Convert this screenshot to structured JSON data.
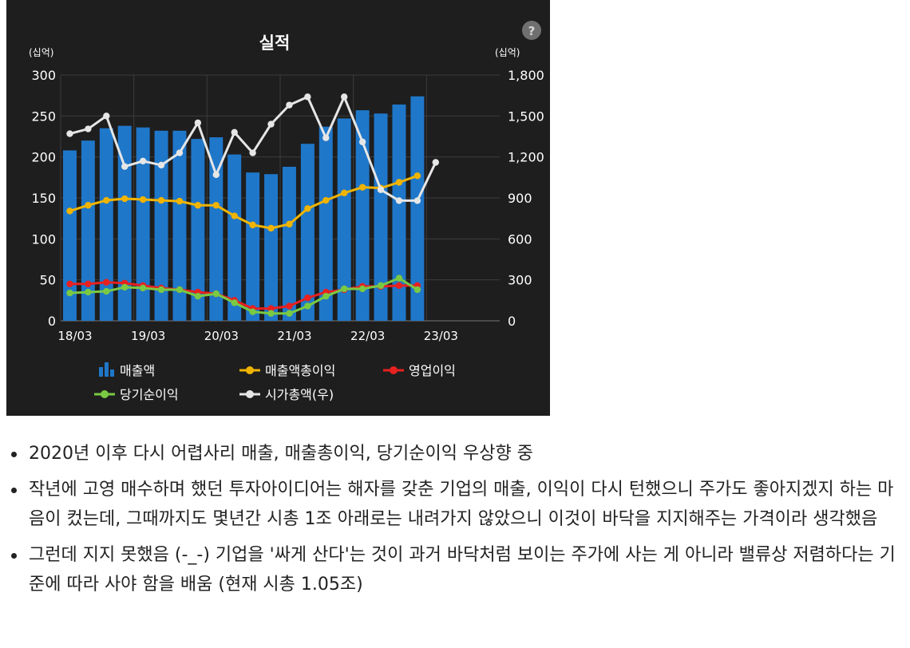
{
  "chart_data": {
    "type": "bar+line",
    "title": "실적",
    "help_icon": "?",
    "y_left": {
      "unit_label": "(십억)",
      "ylim": [
        0,
        300
      ],
      "ticks": [
        "300",
        "250",
        "200",
        "150",
        "100",
        "50",
        "0"
      ]
    },
    "y_right": {
      "unit_label": "(십억)",
      "ylim": [
        0,
        1800
      ],
      "ticks": [
        "1,800",
        "1,500",
        "1,200",
        "900",
        "600",
        "300",
        "0"
      ]
    },
    "x_ticks": [
      "18/03",
      "19/03",
      "20/03",
      "21/03",
      "22/03",
      "23/03"
    ],
    "categories": [
      "18/03",
      "18/06",
      "18/09",
      "18/12",
      "19/03",
      "19/06",
      "19/09",
      "19/12",
      "20/03",
      "20/06",
      "20/09",
      "20/12",
      "21/03",
      "21/06",
      "21/09",
      "21/12",
      "22/03",
      "22/06",
      "22/09",
      "22/12",
      "23/03"
    ],
    "series": [
      {
        "name": "매출액",
        "type": "bar",
        "axis": "left",
        "color": "#1f77c9",
        "values": [
          208,
          220,
          235,
          238,
          236,
          232,
          232,
          222,
          224,
          203,
          181,
          179,
          188,
          216,
          237,
          247,
          257,
          253,
          264,
          274,
          null
        ]
      },
      {
        "name": "매출액총이익",
        "type": "line",
        "axis": "left",
        "color": "#f0b400",
        "values": [
          134,
          141,
          147,
          149,
          148,
          147,
          146,
          141,
          141,
          128,
          117,
          113,
          118,
          137,
          147,
          156,
          163,
          162,
          169,
          177,
          null
        ]
      },
      {
        "name": "영업이익",
        "type": "line",
        "axis": "left",
        "color": "#e82020",
        "values": [
          45,
          45,
          47,
          46,
          43,
          40,
          38,
          35,
          33,
          25,
          15,
          15,
          18,
          28,
          35,
          38,
          42,
          42,
          43,
          43,
          null
        ]
      },
      {
        "name": "당기순이익",
        "type": "line",
        "axis": "left",
        "color": "#7ac943",
        "values": [
          34,
          35,
          36,
          41,
          40,
          38,
          38,
          30,
          33,
          22,
          11,
          9,
          9,
          18,
          30,
          39,
          39,
          43,
          52,
          38,
          null
        ]
      },
      {
        "name": "시가총액(우)",
        "type": "line",
        "axis": "right",
        "color": "#e6e6e6",
        "values": [
          1370,
          1405,
          1500,
          1130,
          1170,
          1140,
          1230,
          1450,
          1070,
          1380,
          1230,
          1440,
          1580,
          1640,
          1340,
          1640,
          1310,
          960,
          880,
          880,
          1160
        ]
      }
    ],
    "legend": [
      "매출액",
      "매출액총이익",
      "영업이익",
      "당기순이익",
      "시가총액(우)"
    ],
    "legend_position": "bottom",
    "grid": true
  },
  "notes": [
    "2020년 이후 다시 어렵사리 매출, 매출총이익, 당기순이익 우상향 중",
    "작년에 고영 매수하며 했던 투자아이디어는 해자를 갖춘 기업의 매출, 이익이 다시 턴했으니 주가도 좋아지겠지 하는 마음이 컸는데, 그때까지도 몇년간 시총 1조 아래로는 내려가지 않았으니 이것이 바닥을 지지해주는 가격이라 생각했음",
    "그런데 지지 못했음 (-_-) 기업을 '싸게 산다'는 것이 과거 바닥처럼 보이는 주가에 사는 게 아니라 밸류상 저렴하다는 기준에 따라 사야 함을 배움 (현재 시총 1.05조)"
  ]
}
